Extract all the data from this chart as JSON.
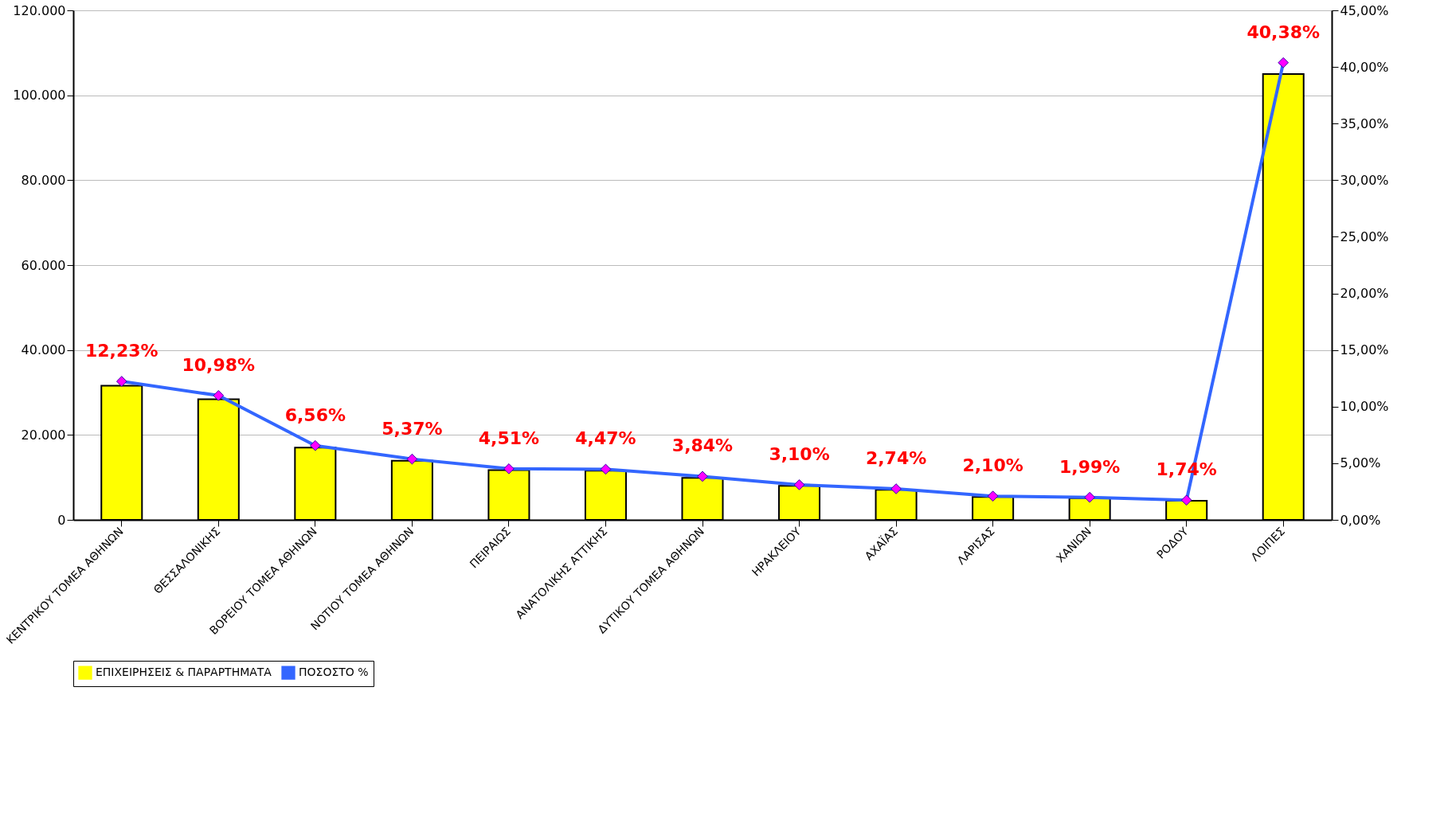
{
  "chart_data": {
    "type": "bar",
    "categories": [
      "ΚΕΝΤΡΙΚΟΥ ΤΟΜΕΑ ΑΘΗΝΩΝ",
      "ΘΕΣΣΑΛΟΝΙΚΗΣ",
      "ΒΟΡΕΙΟΥ ΤΟΜΕΑ ΑΘΗΝΩΝ",
      "ΝΟΤΙΟΥ ΤΟΜΕΑ ΑΘΗΝΩΝ",
      "ΠΕΙΡΑΙΩΣ",
      "ΑΝΑΤΟΛΙΚΗΣ ΑΤΤΙΚΗΣ",
      "ΔΥΤΙΚΟΥ ΤΟΜΕΑ ΑΘΗΝΩΝ",
      "ΗΡΑΚΛΕΙΟΥ",
      "ΑΧΑΪΑΣ",
      "ΛΑΡΙΣΑΣ",
      "ΧΑΝΙΩΝ",
      "ΡΟΔΟΥ",
      "ΛΟΙΠΕΣ"
    ],
    "series": [
      {
        "name": "ΕΠΙΧΕΙΡΗΣΕΙΣ & ΠΑΡΑΡΤΗΜΑΤΑ",
        "color": "#ffff00",
        "values": [
          31600,
          28400,
          17000,
          13900,
          11700,
          11600,
          9900,
          8000,
          7100,
          5400,
          5100,
          4500,
          105000
        ]
      },
      {
        "name": "ΠΟΣΟΣΤΟ %",
        "type": "line",
        "axis": "y2",
        "color": "#3366ff",
        "marker": "diamond",
        "values": [
          12.23,
          10.98,
          6.56,
          5.37,
          4.51,
          4.47,
          3.84,
          3.1,
          2.74,
          2.1,
          1.99,
          1.74,
          40.38
        ],
        "value_labels": [
          "12,23%",
          "10,98%",
          "6,56%",
          "5,37%",
          "4,51%",
          "4,47%",
          "3,84%",
          "3,10%",
          "2,74%",
          "2,10%",
          "1,99%",
          "1,74%",
          "40,38%"
        ]
      }
    ],
    "ylim": [
      0,
      120000
    ],
    "yticks": [
      {
        "value": 0,
        "label": "0"
      },
      {
        "value": 20000,
        "label": "20.000"
      },
      {
        "value": 40000,
        "label": "40.000"
      },
      {
        "value": 60000,
        "label": "60.000"
      },
      {
        "value": 80000,
        "label": "80.000"
      },
      {
        "value": 100000,
        "label": "100.000"
      },
      {
        "value": 120000,
        "label": "120.000"
      }
    ],
    "y2lim": [
      0,
      45
    ],
    "y2ticks": [
      {
        "value": 0,
        "label": "0,00%"
      },
      {
        "value": 5,
        "label": "5,00%"
      },
      {
        "value": 10,
        "label": "10,00%"
      },
      {
        "value": 15,
        "label": "15,00%"
      },
      {
        "value": 20,
        "label": "20,00%"
      },
      {
        "value": 25,
        "label": "25,00%"
      },
      {
        "value": 30,
        "label": "30,00%"
      },
      {
        "value": 35,
        "label": "35,00%"
      },
      {
        "value": 40,
        "label": "40,00%"
      },
      {
        "value": 45,
        "label": "45,00%"
      }
    ],
    "grid": "y",
    "legend": "bottom"
  }
}
